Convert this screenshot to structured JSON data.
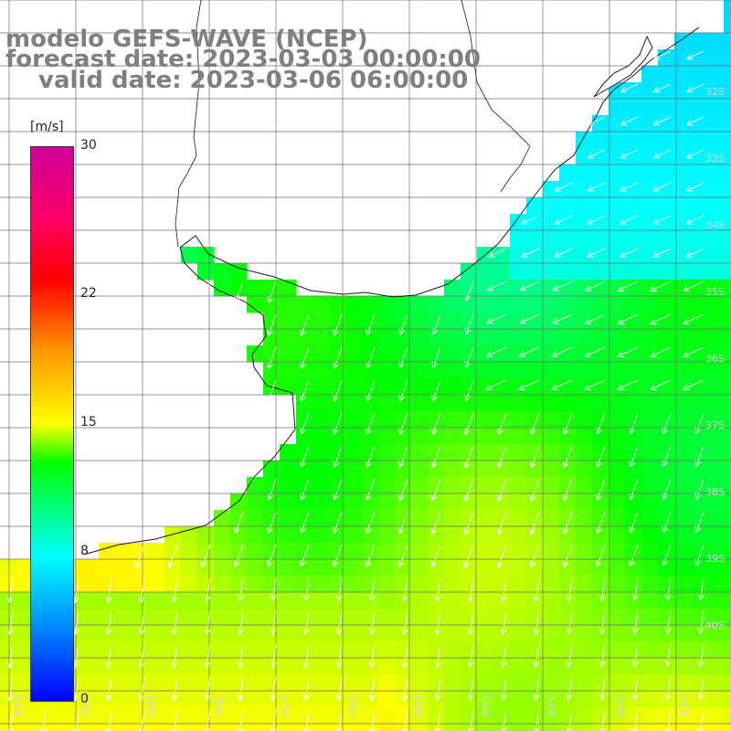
{
  "title": {
    "line1": "modelo GEFS-WAVE (NCEP)",
    "line2": "forecast date: 2023-03-03 00:00:00",
    "line3": "valid date: 2023-03-06 06:00:00"
  },
  "colorbar": {
    "units": "[m/s]",
    "ticks": [
      {
        "label": "30",
        "value": 30
      },
      {
        "label": "22",
        "value": 22
      },
      {
        "label": "15",
        "value": 15
      },
      {
        "label": "8",
        "value": 8
      },
      {
        "label": "0",
        "value": 0
      }
    ],
    "colors": [
      "#0000ff",
      "#0090ff",
      "#00ffff",
      "#00ff00",
      "#ffff00",
      "#ff9900",
      "#ff0000",
      "#ff0066",
      "#cc0099"
    ]
  },
  "map": {
    "lat_labels": [
      "32S",
      "33S",
      "34S",
      "35S",
      "36S",
      "37S",
      "38S",
      "39S",
      "40S"
    ],
    "lon_labels": [
      "61W",
      "60W",
      "59W",
      "58W",
      "57W",
      "56W",
      "55W",
      "54W",
      "53W",
      "52W",
      "51W"
    ],
    "land_color": "#ffffff",
    "arrow_color": "#ffffff",
    "arrow_direction": "southwest"
  }
}
